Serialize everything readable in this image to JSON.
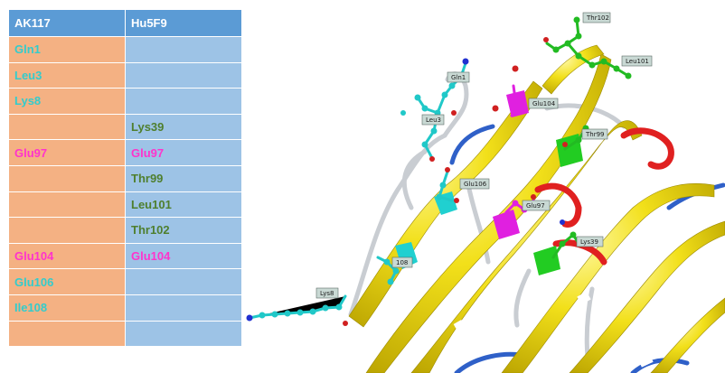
{
  "colors": {
    "cyan_residue": "#33cccc",
    "magenta_residue": "#ff33cc",
    "green_residue": "#4f7f2e",
    "header_bg": "#5b9bd5",
    "ak117_column_bg": "#f4b183",
    "hu5f9_column_bg": "#9dc3e6",
    "strand_yellow": "#f2e01a",
    "helix_red": "#e02020",
    "loop_blue": "#2f60c8"
  },
  "table": {
    "headers": [
      "AK117",
      "Hu5F9"
    ],
    "rows": [
      {
        "ak117": "Gln1",
        "ak117_color": "#33cccc",
        "hu5f9": "",
        "hu5f9_color": ""
      },
      {
        "ak117": "Leu3",
        "ak117_color": "#33cccc",
        "hu5f9": "",
        "hu5f9_color": ""
      },
      {
        "ak117": "Lys8",
        "ak117_color": "#33cccc",
        "hu5f9": "",
        "hu5f9_color": ""
      },
      {
        "ak117": "",
        "ak117_color": "",
        "hu5f9": "Lys39",
        "hu5f9_color": "#4f7f2e"
      },
      {
        "ak117": "Glu97",
        "ak117_color": "#ff33cc",
        "hu5f9": "Glu97",
        "hu5f9_color": "#ff33cc"
      },
      {
        "ak117": "",
        "ak117_color": "",
        "hu5f9": "Thr99",
        "hu5f9_color": "#4f7f2e"
      },
      {
        "ak117": "",
        "ak117_color": "",
        "hu5f9": "Leu101",
        "hu5f9_color": "#4f7f2e"
      },
      {
        "ak117": "",
        "ak117_color": "",
        "hu5f9": "Thr102",
        "hu5f9_color": "#4f7f2e"
      },
      {
        "ak117": "Glu104",
        "ak117_color": "#ff33cc",
        "hu5f9": "Glu104",
        "hu5f9_color": "#ff33cc"
      },
      {
        "ak117": "Glu106",
        "ak117_color": "#33cccc",
        "hu5f9": "",
        "hu5f9_color": ""
      },
      {
        "ak117": "Ile108",
        "ak117_color": "#33cccc",
        "hu5f9": "",
        "hu5f9_color": ""
      },
      {
        "ak117": "",
        "ak117_color": "",
        "hu5f9": "",
        "hu5f9_color": ""
      }
    ]
  },
  "structure": {
    "residue_labels": [
      "Thr102",
      "Leu101",
      "Gln1",
      "Glu104",
      "Leu3",
      "Thr99",
      "Glu106",
      "Glu97",
      "Lys39",
      "108",
      "Lys8"
    ]
  }
}
